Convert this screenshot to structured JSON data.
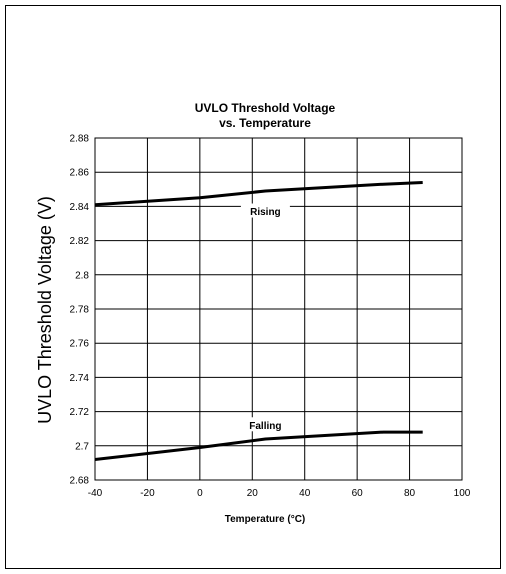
{
  "chart_data": {
    "type": "line",
    "title": "UVLO Threshold Voltage",
    "subtitle": "vs. Temperature",
    "xlabel": "Temperature (°C)",
    "ylabel": "UVLO Threshold Voltage (V)",
    "xlim": [
      -40,
      100
    ],
    "ylim": [
      2.68,
      2.88
    ],
    "x_ticks": [
      -40,
      -20,
      0,
      20,
      40,
      60,
      80,
      100
    ],
    "x_tick_labels": [
      "-40",
      "-20",
      "0",
      "20",
      "40",
      "60",
      "80",
      "100"
    ],
    "y_ticks": [
      2.68,
      2.7,
      2.72,
      2.74,
      2.76,
      2.78,
      2.8,
      2.82,
      2.84,
      2.86,
      2.88
    ],
    "y_tick_labels": [
      "2.68",
      "2.7",
      "2.72",
      "2.74",
      "2.76",
      "2.78",
      "2.8",
      "2.82",
      "2.84",
      "2.86",
      "2.88"
    ],
    "grid": true,
    "series": [
      {
        "name": "Rising",
        "x": [
          -40,
          0,
          25,
          70,
          85
        ],
        "y": [
          2.841,
          2.845,
          2.849,
          2.853,
          2.854
        ],
        "color": "#000000"
      },
      {
        "name": "Falling",
        "x": [
          -40,
          0,
          25,
          70,
          85
        ],
        "y": [
          2.692,
          2.699,
          2.704,
          2.708,
          2.708
        ],
        "color": "#000000"
      }
    ],
    "annotations": [
      {
        "text": "Rising",
        "x": 25,
        "y": 2.837
      },
      {
        "text": "Falling",
        "x": 25,
        "y": 2.712
      }
    ]
  }
}
